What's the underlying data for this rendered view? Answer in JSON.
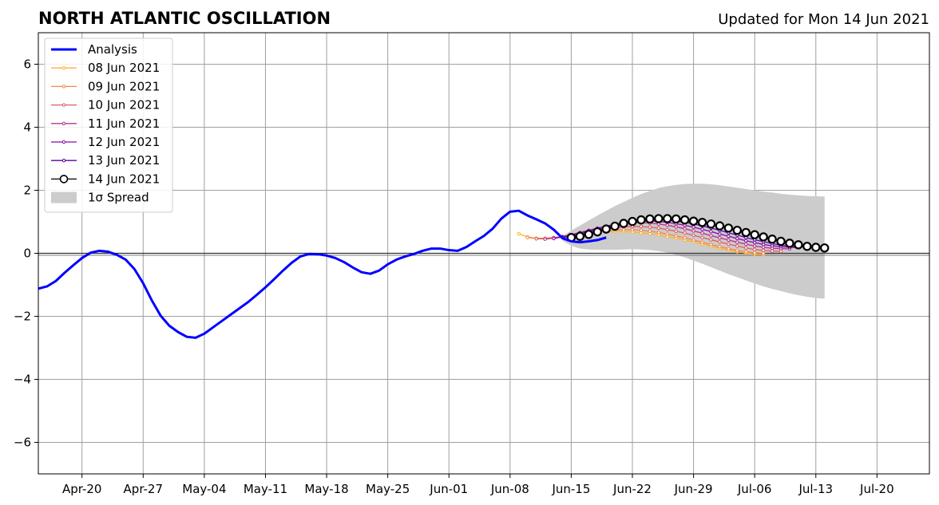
{
  "chart_data": {
    "type": "line",
    "title": "NORTH ATLANTIC OSCILLATION",
    "subtitle": "Updated for Mon 14 Jun 2021",
    "xlabel": "",
    "ylabel": "",
    "x_range": [
      "2021-04-15",
      "2021-07-26"
    ],
    "xticks": [
      {
        "date": "2021-04-20",
        "label": "Apr-20"
      },
      {
        "date": "2021-04-27",
        "label": "Apr-27"
      },
      {
        "date": "2021-05-04",
        "label": "May-04"
      },
      {
        "date": "2021-05-11",
        "label": "May-11"
      },
      {
        "date": "2021-05-18",
        "label": "May-18"
      },
      {
        "date": "2021-05-25",
        "label": "May-25"
      },
      {
        "date": "2021-06-01",
        "label": "Jun-01"
      },
      {
        "date": "2021-06-08",
        "label": "Jun-08"
      },
      {
        "date": "2021-06-15",
        "label": "Jun-15"
      },
      {
        "date": "2021-06-22",
        "label": "Jun-22"
      },
      {
        "date": "2021-06-29",
        "label": "Jun-29"
      },
      {
        "date": "2021-07-06",
        "label": "Jul-06"
      },
      {
        "date": "2021-07-13",
        "label": "Jul-13"
      },
      {
        "date": "2021-07-20",
        "label": "Jul-20"
      }
    ],
    "ylim": [
      -7,
      7
    ],
    "yticks": [
      {
        "value": -6,
        "label": "−6"
      },
      {
        "value": -4,
        "label": "−4"
      },
      {
        "value": -2,
        "label": "−2"
      },
      {
        "value": 0,
        "label": "0"
      },
      {
        "value": 2,
        "label": "2"
      },
      {
        "value": 4,
        "label": "4"
      },
      {
        "value": 6,
        "label": "6"
      }
    ],
    "grid": true,
    "legend_position": "top-left",
    "analysis": {
      "name": "Analysis",
      "color": "#0000ff",
      "start_date": "2021-04-15",
      "values": [
        -1.12,
        -1.05,
        -0.88,
        -0.62,
        -0.38,
        -0.15,
        0.02,
        0.08,
        0.05,
        -0.05,
        -0.2,
        -0.5,
        -0.95,
        -1.5,
        -1.98,
        -2.3,
        -2.5,
        -2.65,
        -2.68,
        -2.55,
        -2.35,
        -2.15,
        -1.95,
        -1.75,
        -1.55,
        -1.32,
        -1.08,
        -0.82,
        -0.55,
        -0.3,
        -0.1,
        -0.02,
        -0.03,
        -0.07,
        -0.15,
        -0.28,
        -0.45,
        -0.6,
        -0.65,
        -0.55,
        -0.35,
        -0.2,
        -0.1,
        -0.02,
        0.08,
        0.15,
        0.15,
        0.1,
        0.08,
        0.2,
        0.38,
        0.55,
        0.78,
        1.1,
        1.32,
        1.35,
        1.2,
        1.08,
        0.95,
        0.75,
        0.48,
        0.38,
        0.35,
        0.38,
        0.42,
        0.5
      ]
    },
    "forecasts": [
      {
        "name": "08 Jun 2021",
        "color": "#fdb32f",
        "start_date": "2021-06-09",
        "values": [
          0.62,
          0.52,
          0.48,
          0.48,
          0.5,
          0.52,
          0.56,
          0.6,
          0.63,
          0.66,
          0.68,
          0.69,
          0.69,
          0.68,
          0.65,
          0.62,
          0.58,
          0.53,
          0.48,
          0.42,
          0.36,
          0.29,
          0.22,
          0.16,
          0.1,
          0.05,
          0.01,
          -0.02,
          -0.04
        ]
      },
      {
        "name": "09 Jun 2021",
        "color": "#f48849",
        "start_date": "2021-06-10",
        "values": [
          0.5,
          0.47,
          0.47,
          0.5,
          0.53,
          0.57,
          0.61,
          0.65,
          0.69,
          0.72,
          0.74,
          0.75,
          0.75,
          0.73,
          0.7,
          0.66,
          0.61,
          0.55,
          0.49,
          0.42,
          0.35,
          0.28,
          0.21,
          0.15,
          0.09,
          0.05,
          0.02,
          0.0
        ]
      },
      {
        "name": "10 Jun 2021",
        "color": "#db5c68",
        "start_date": "2021-06-11",
        "values": [
          0.46,
          0.46,
          0.49,
          0.53,
          0.58,
          0.63,
          0.68,
          0.73,
          0.77,
          0.81,
          0.84,
          0.85,
          0.85,
          0.83,
          0.8,
          0.75,
          0.7,
          0.64,
          0.57,
          0.5,
          0.43,
          0.36,
          0.29,
          0.23,
          0.17,
          0.12,
          0.09,
          0.07,
          0.06
        ]
      },
      {
        "name": "11 Jun 2021",
        "color": "#b83289",
        "start_date": "2021-06-12",
        "values": [
          0.45,
          0.48,
          0.53,
          0.59,
          0.66,
          0.73,
          0.8,
          0.86,
          0.91,
          0.95,
          0.97,
          0.97,
          0.96,
          0.93,
          0.89,
          0.84,
          0.78,
          0.71,
          0.64,
          0.56,
          0.49,
          0.42,
          0.35,
          0.29,
          0.23,
          0.19,
          0.16,
          0.15,
          0.14
        ]
      },
      {
        "name": "12 Jun 2021",
        "color": "#8b0aa5",
        "start_date": "2021-06-13",
        "values": [
          0.47,
          0.52,
          0.58,
          0.65,
          0.72,
          0.79,
          0.86,
          0.92,
          0.97,
          1.0,
          1.02,
          1.02,
          1.01,
          0.98,
          0.94,
          0.89,
          0.83,
          0.76,
          0.69,
          0.61,
          0.54,
          0.47,
          0.4,
          0.34,
          0.28,
          0.24,
          0.21,
          0.19,
          0.18
        ]
      },
      {
        "name": "13 Jun 2021",
        "color": "#5b01a5",
        "start_date": "2021-06-14",
        "values": [
          0.5,
          0.55,
          0.61,
          0.68,
          0.75,
          0.82,
          0.89,
          0.95,
          1.0,
          1.04,
          1.06,
          1.06,
          1.05,
          1.02,
          0.98,
          0.93,
          0.87,
          0.8,
          0.73,
          0.65,
          0.58,
          0.5,
          0.43,
          0.37,
          0.31,
          0.26,
          0.23,
          0.21,
          0.2
        ]
      },
      {
        "name": "14 Jun 2021",
        "color": "#000000",
        "start_date": "2021-06-15",
        "values": [
          0.5,
          0.54,
          0.6,
          0.68,
          0.77,
          0.86,
          0.95,
          1.01,
          1.06,
          1.09,
          1.1,
          1.1,
          1.09,
          1.06,
          1.02,
          0.98,
          0.93,
          0.87,
          0.8,
          0.73,
          0.66,
          0.59,
          0.52,
          0.45,
          0.38,
          0.32,
          0.27,
          0.22,
          0.19,
          0.17
        ]
      }
    ],
    "spread": {
      "name": "1σ Spread",
      "color": "#cccccc",
      "start_date": "2021-06-14",
      "upper": [
        0.55,
        0.72,
        0.88,
        1.04,
        1.2,
        1.35,
        1.5,
        1.63,
        1.76,
        1.88,
        1.98,
        2.07,
        2.13,
        2.17,
        2.2,
        2.21,
        2.21,
        2.19,
        2.16,
        2.12,
        2.08,
        2.04,
        2.0,
        1.96,
        1.93,
        1.89,
        1.86,
        1.84,
        1.82,
        1.81,
        1.8
      ],
      "lower": [
        0.4,
        0.24,
        0.15,
        0.12,
        0.11,
        0.11,
        0.11,
        0.12,
        0.13,
        0.12,
        0.1,
        0.07,
        0.02,
        -0.05,
        -0.13,
        -0.23,
        -0.33,
        -0.44,
        -0.55,
        -0.66,
        -0.76,
        -0.86,
        -0.96,
        -1.05,
        -1.13,
        -1.2,
        -1.27,
        -1.33,
        -1.38,
        -1.42,
        -1.44
      ]
    }
  }
}
